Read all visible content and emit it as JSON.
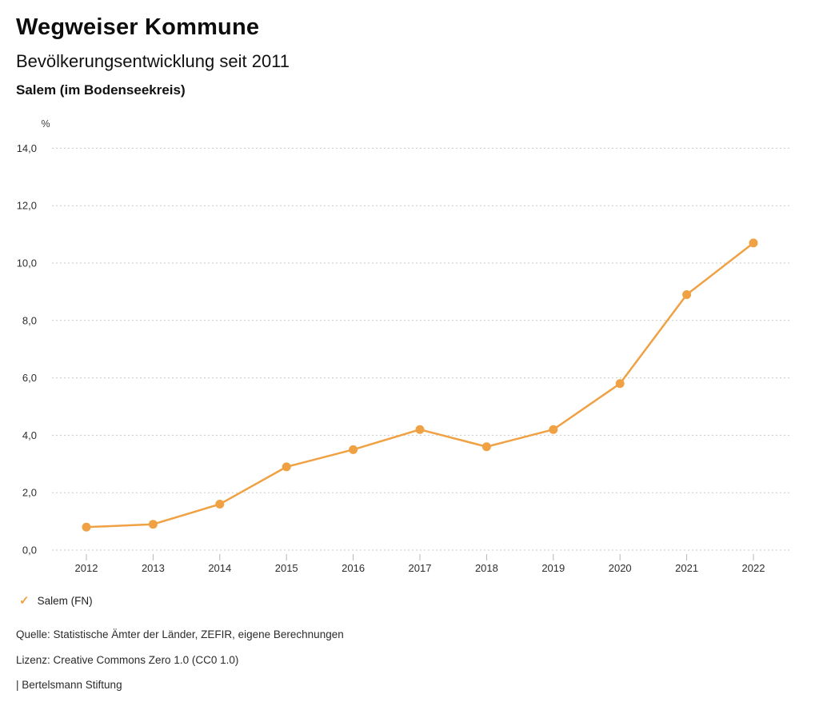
{
  "header": {
    "title": "Wegweiser Kommune",
    "subtitle": "Bevölkerungsentwicklung seit 2011",
    "region": "Salem (im Bodenseekreis)"
  },
  "chart_data": {
    "type": "line",
    "title": "Bevölkerungsentwicklung seit 2011",
    "unit_label": "%",
    "categories": [
      "2012",
      "2013",
      "2014",
      "2015",
      "2016",
      "2017",
      "2018",
      "2019",
      "2020",
      "2021",
      "2022"
    ],
    "series": [
      {
        "name": "Salem (FN)",
        "color": "#EFA143",
        "values": [
          0.8,
          0.9,
          1.6,
          2.9,
          3.5,
          4.2,
          3.6,
          4.2,
          5.8,
          8.9,
          10.7
        ]
      }
    ],
    "ylim": [
      0,
      14
    ],
    "ytick_step": 2,
    "ytick_labels": [
      "0,0",
      "2,0",
      "4,0",
      "6,0",
      "8,0",
      "10,0",
      "12,0",
      "14,0"
    ],
    "xlabel": "",
    "ylabel": "%",
    "grid": "horizontal-dotted",
    "legend_position": "bottom-left"
  },
  "legend": {
    "marker": "check-icon",
    "label": "Salem (FN)",
    "color": "#EFA143"
  },
  "footer": {
    "source": "Quelle: Statistische Ämter der Länder, ZEFIR, eigene Berechnungen",
    "license": "Lizenz: Creative Commons Zero 1.0 (CC0 1.0)",
    "attribution": "| Bertelsmann Stiftung"
  },
  "colors": {
    "accent": "#EFA143",
    "grid": "#C9C9C9",
    "text": "#111111"
  }
}
